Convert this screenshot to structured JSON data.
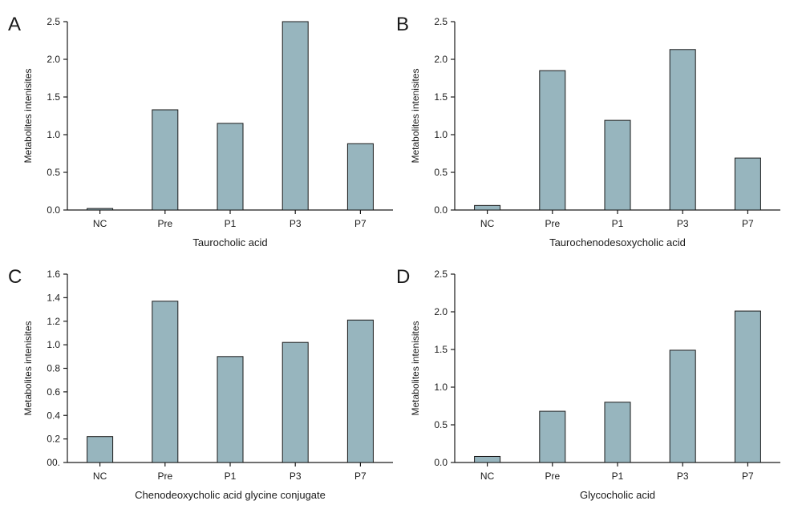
{
  "colors": {
    "bar_fill": "#97b5be",
    "bar_stroke": "#1a1a1a",
    "axis": "#1a1a1a"
  },
  "chart_data": [
    {
      "panel": "A",
      "type": "bar",
      "categories": [
        "NC",
        "Pre",
        "P1",
        "P3",
        "P7"
      ],
      "values": [
        0.02,
        1.33,
        1.15,
        2.5,
        0.88
      ],
      "xlabel": "Taurocholic acid",
      "ylabel": "Metabolites intenisites",
      "ylim": [
        0,
        2.5
      ],
      "yticks": [
        "0.0",
        "0.5",
        "1.0",
        "1.5",
        "2.0",
        "2.5"
      ],
      "grid": false
    },
    {
      "panel": "B",
      "type": "bar",
      "categories": [
        "NC",
        "Pre",
        "P1",
        "P3",
        "P7"
      ],
      "values": [
        0.06,
        1.85,
        1.19,
        2.13,
        0.69
      ],
      "xlabel": "Taurochenodesoxycholic acid",
      "ylabel": "Metabolites intenisites",
      "ylim": [
        0,
        2.5
      ],
      "yticks": [
        "0.0",
        "0.5",
        "1.0",
        "1.5",
        "2.0",
        "2.5"
      ],
      "grid": false
    },
    {
      "panel": "C",
      "type": "bar",
      "categories": [
        "NC",
        "Pre",
        "P1",
        "P3",
        "P7"
      ],
      "values": [
        0.22,
        1.37,
        0.9,
        1.02,
        1.21
      ],
      "xlabel": "Chenodeoxycholic acid glycine conjugate",
      "ylabel": "Metabolites intenisites",
      "ylim": [
        0,
        1.6
      ],
      "yticks": [
        "00.",
        "0.2",
        "0.4",
        "0.6",
        "0.8",
        "1.0",
        "1.2",
        "1.4",
        "1.6"
      ],
      "grid": false
    },
    {
      "panel": "D",
      "type": "bar",
      "categories": [
        "NC",
        "Pre",
        "P1",
        "P3",
        "P7"
      ],
      "values": [
        0.08,
        0.68,
        0.8,
        1.49,
        2.01
      ],
      "xlabel": "Glycocholic acid",
      "ylabel": "Metabolites intenisites",
      "ylim": [
        0,
        2.5
      ],
      "yticks": [
        "0.0",
        "0.5",
        "1.0",
        "1.5",
        "2.0",
        "2.5"
      ],
      "grid": false
    }
  ]
}
